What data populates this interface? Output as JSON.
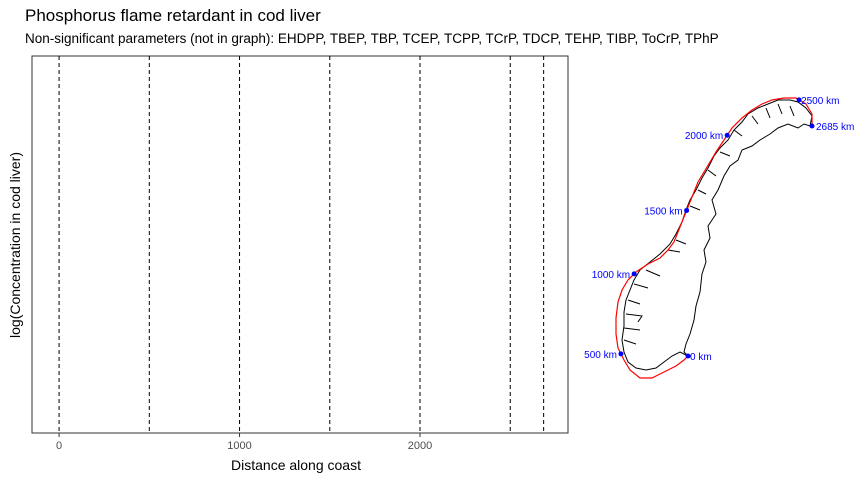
{
  "chart_data": [
    {
      "type": "scatter",
      "title": "Phosphorus flame retardant in cod liver",
      "subtitle": "Non-significant parameters (not in graph): EHDPP, TBEP, TBP, TCEP, TCPP, TCrP, TDCP, TEHP, TIBP, ToCrP, TPhP",
      "xlabel": "Distance along coast",
      "ylabel": "log(Concentration in cod liver)",
      "xlim": [
        -150,
        2820
      ],
      "x_ticks": [
        0,
        1000,
        2000
      ],
      "x_tick_labels": [
        "0",
        "1000",
        "2000"
      ],
      "reference_lines_x": [
        0,
        500,
        1000,
        1500,
        2000,
        2500,
        2685
      ],
      "series": [],
      "grid": false
    },
    {
      "type": "map",
      "points": [
        {
          "label": "0 km",
          "distance": 0
        },
        {
          "label": "500 km",
          "distance": 500
        },
        {
          "label": "1000 km",
          "distance": 1000
        },
        {
          "label": "1500 km",
          "distance": 1500
        },
        {
          "label": "2000 km",
          "distance": 2000
        },
        {
          "label": "2500 km",
          "distance": 2500
        },
        {
          "label": "2685 km",
          "distance": 2685
        }
      ],
      "point_color": "#0000ff",
      "coast_line_color": "#ff0000",
      "land_outline_color": "#000000"
    }
  ]
}
